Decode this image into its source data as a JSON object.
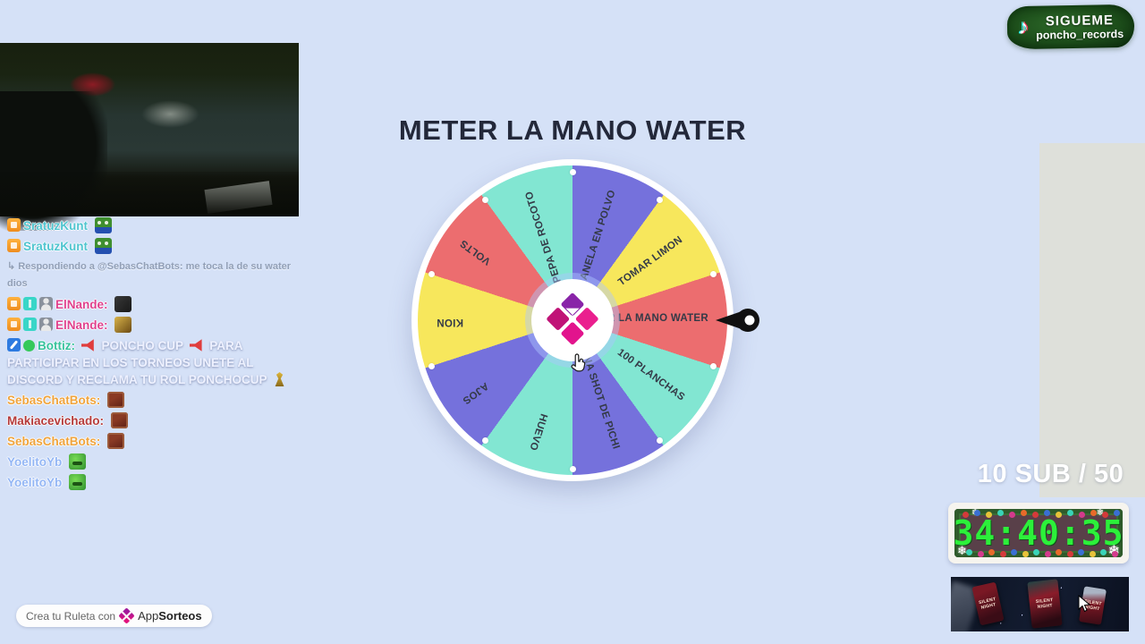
{
  "background_color": "#d5e1f7",
  "tiktok_badge": {
    "title": "SIGUEME",
    "handle": "poncho_records",
    "icon": "tiktok-note-icon"
  },
  "wheel": {
    "title": "METER LA MANO WATER",
    "segments": [
      {
        "label": "METER LA MANO WATER",
        "color": "#ec6d6f"
      },
      {
        "label": "100 PLANCHAS",
        "color": "#82e6d2"
      },
      {
        "label": "UNA SHOT DE PICHI",
        "color": "#7571dc"
      },
      {
        "label": "HUEVO",
        "color": "#82e6d2"
      },
      {
        "label": "AJOS",
        "color": "#7571dc"
      },
      {
        "label": "KION",
        "color": "#f7e75c"
      },
      {
        "label": "VOLTS",
        "color": "#ec6d6f"
      },
      {
        "label": "PEPA DE ROCOTO",
        "color": "#82e6d2"
      },
      {
        "label": "CANELA EN POLVO",
        "color": "#7571dc"
      },
      {
        "label": "TOMAR LIMON",
        "color": "#f7e75c"
      }
    ],
    "pointer_color": "#111111",
    "hub_logo_colors": [
      "#8924a8",
      "#ea1f8e",
      "#c01377",
      "#e2148d"
    ]
  },
  "chat": {
    "messages": [
      {
        "badges": [
          "sub"
        ],
        "name": "SratuzKunt",
        "name_color": "#4fc4cf",
        "emotes": [
          "pepe"
        ],
        "parts": []
      },
      {
        "badges": [
          "sub"
        ],
        "name": "SratuzKunt",
        "name_color": "#4fc4cf",
        "emotes": [
          "pepe"
        ],
        "parts": []
      },
      {
        "reply": true,
        "text": "↳ Respondiendo a @SebasChatBots: me toca la de su water dios"
      },
      {
        "badges": [
          "sub",
          "gift",
          "person"
        ],
        "name": "ElNande:",
        "name_color": "#e0418d",
        "emotes": [
          "dark-emote"
        ],
        "parts": []
      },
      {
        "badges": [
          "sub",
          "gift",
          "person"
        ],
        "name": "ElNande:",
        "name_color": "#e0418d",
        "emotes": [
          "gold-emote"
        ],
        "parts": []
      },
      {
        "badges": [
          "mod",
          "online"
        ],
        "name": "Bottiz:",
        "name_color": "#35c29b",
        "parts": [
          {
            "icon": "megaphone"
          },
          {
            "text": "PONCHO CUP"
          },
          {
            "icon": "megaphone"
          },
          {
            "text": "PARA PARTICIPAR EN LOS TORNEOS UNETE AL DISCORD Y RECLAMA TU ROL PONCHOCUP"
          },
          {
            "icon": "knight"
          }
        ],
        "emotes": []
      },
      {
        "badges": [],
        "name": "SebasChatBots:",
        "name_color": "#f0a43c",
        "emotes": [
          "meat-emote"
        ],
        "parts": []
      },
      {
        "badges": [],
        "name": "Makiacevichado:",
        "name_color": "#b53a3a",
        "emotes": [
          "meat-emote"
        ],
        "parts": []
      },
      {
        "badges": [],
        "name": "SebasChatBots:",
        "name_color": "#f0a43c",
        "emotes": [
          "meat-emote"
        ],
        "parts": []
      },
      {
        "badges": [],
        "name": "YoelitoYb",
        "name_color": "#93b6f5",
        "emotes": [
          "pepe-laugh"
        ],
        "parts": []
      },
      {
        "badges": [],
        "name": "YoelitoYb",
        "name_color": "#93b6f5",
        "emotes": [
          "pepe-laugh"
        ],
        "parts": []
      }
    ]
  },
  "sub_goal": {
    "text": "10 SUB / 50"
  },
  "timer": {
    "value": "34:40:35",
    "digit_color": "#2cf03a",
    "ornament_colors": [
      "#d43a3a",
      "#3a6fd4",
      "#e8c23a",
      "#3ad4b8",
      "#d43a8c",
      "#e86a2a"
    ]
  },
  "banner": {
    "card_label": "SILENT NIGHT"
  },
  "footer_badge": {
    "text": "Crea tu Ruleta con",
    "brand_regular": "App",
    "brand_bold": "Sorteos"
  }
}
